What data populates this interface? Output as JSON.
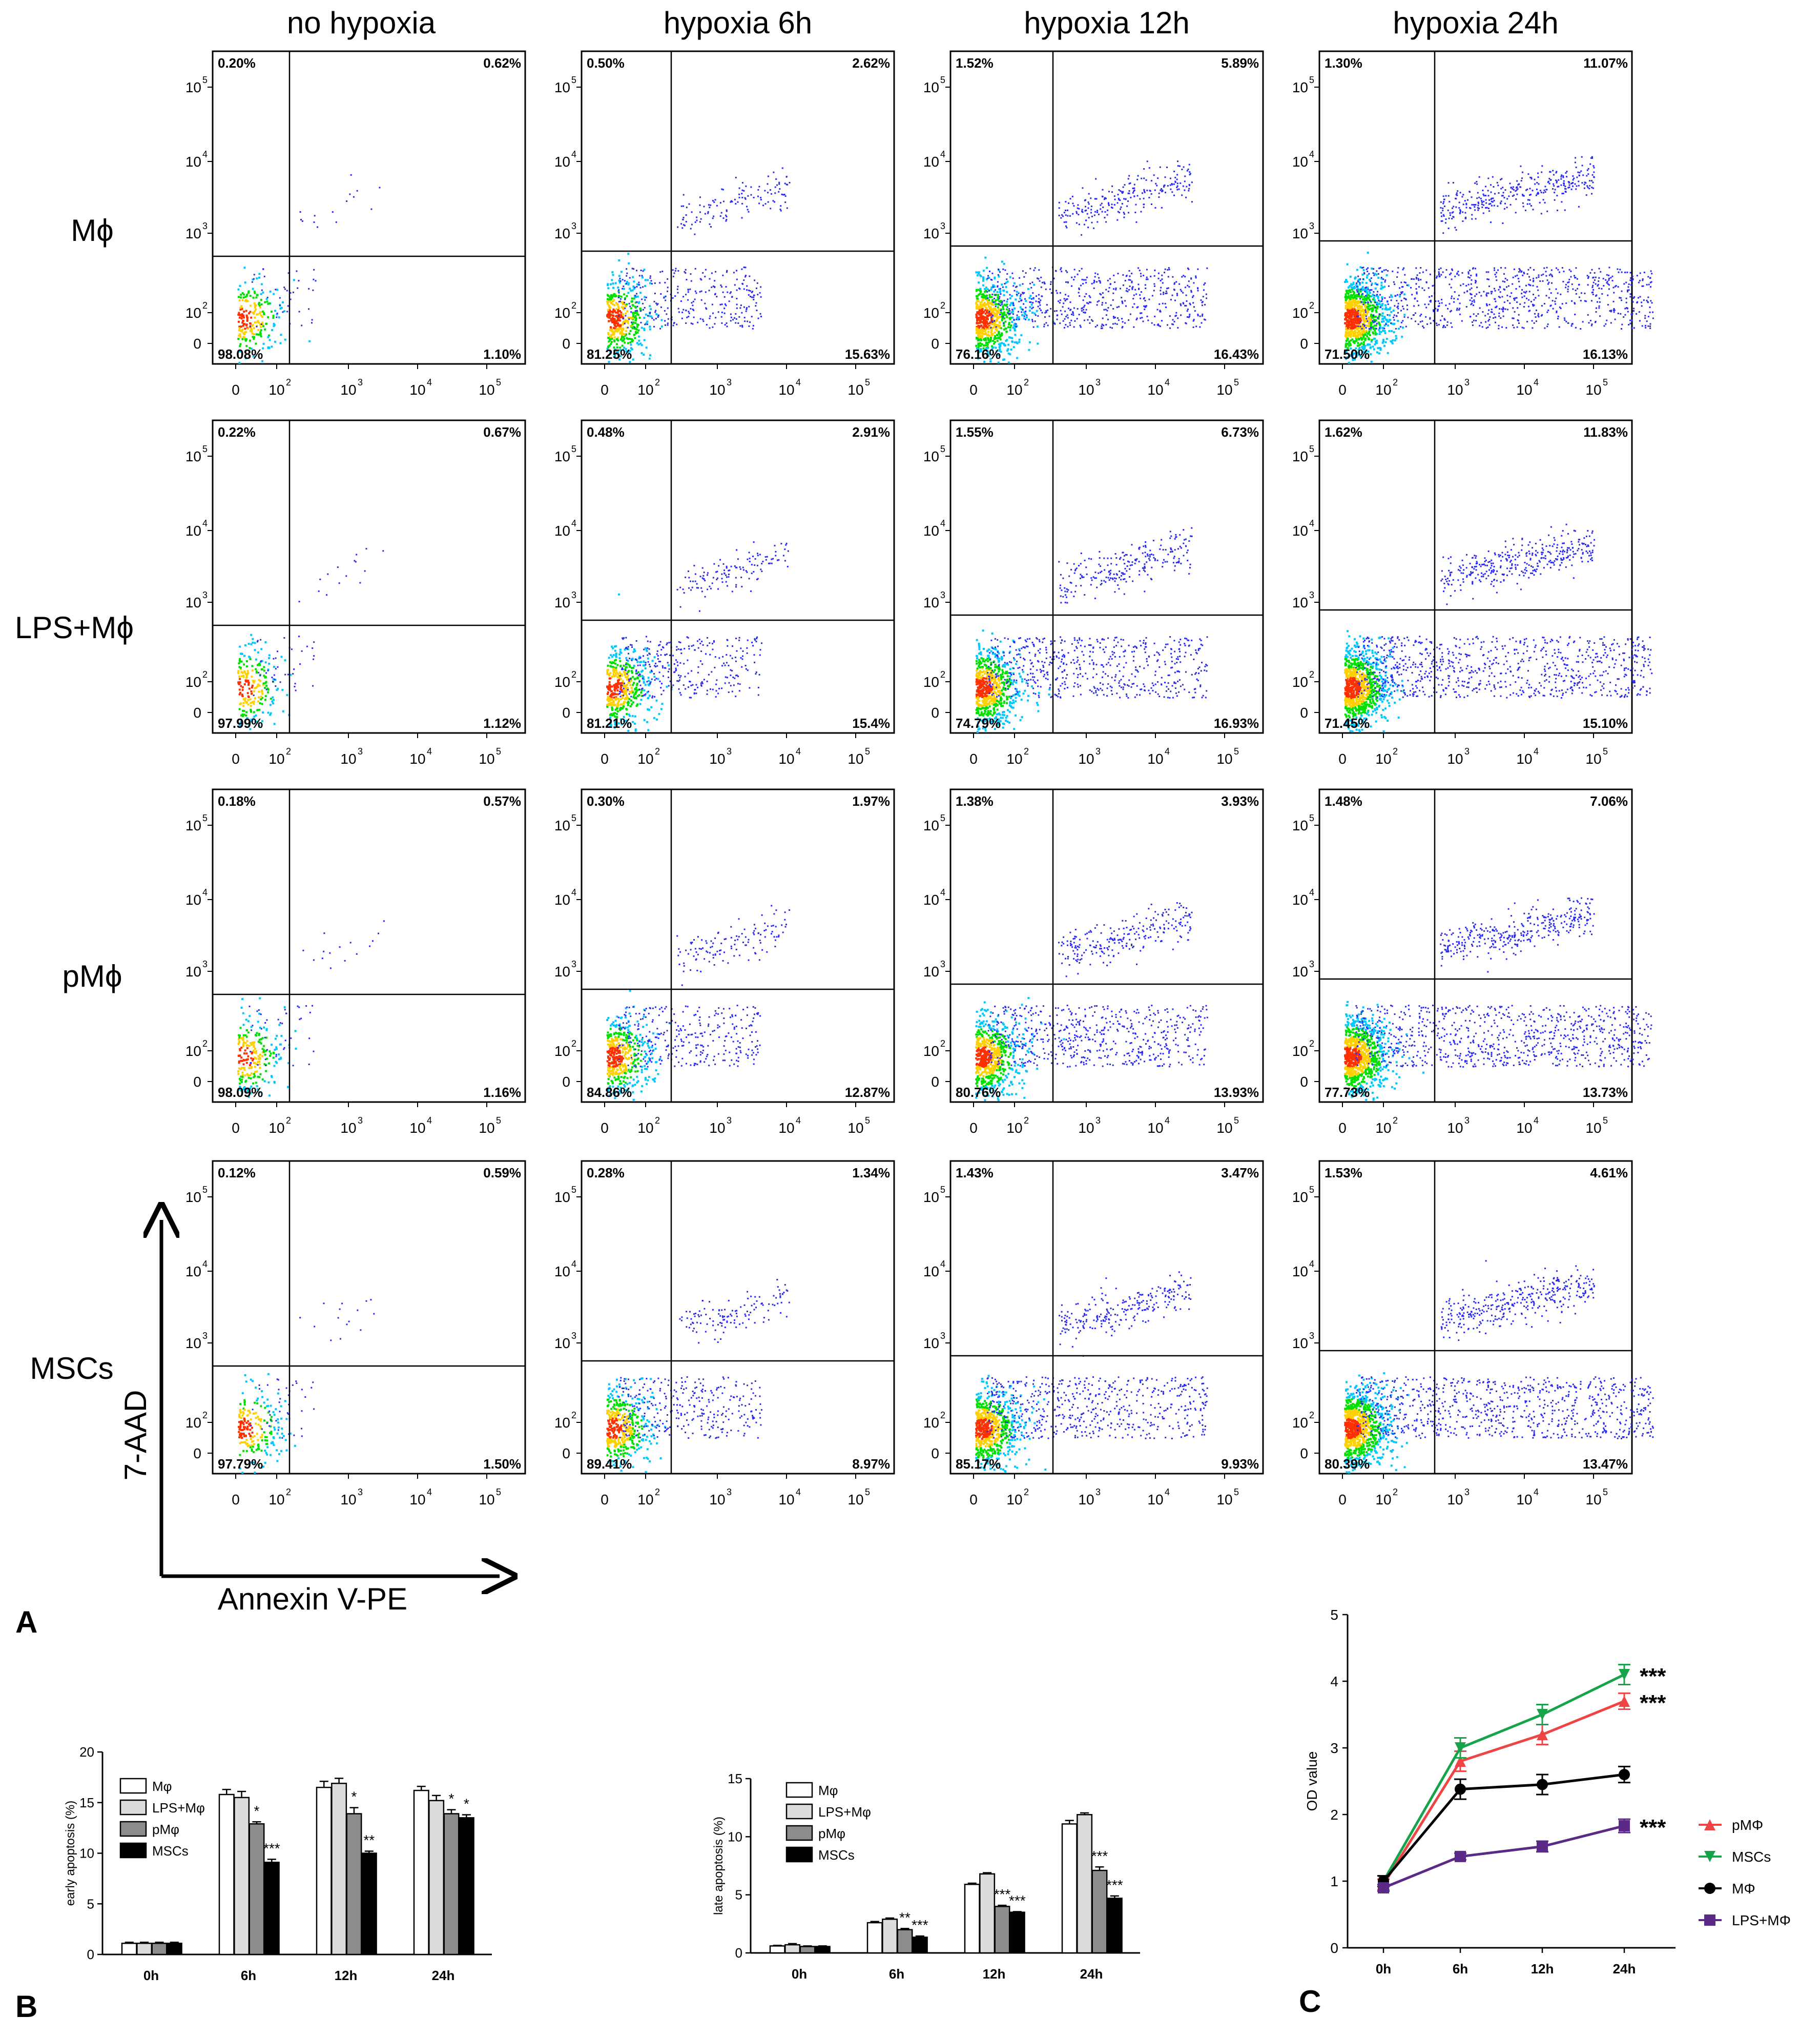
{
  "panel_labels": {
    "a": "A",
    "b": "B",
    "c": "C"
  },
  "column_headers": [
    "no hypoxia",
    "hypoxia 6h",
    "hypoxia 12h",
    "hypoxia 24h"
  ],
  "row_labels": [
    "Mϕ",
    "LPS+Mϕ",
    "pMϕ",
    "MSCs"
  ],
  "axis_titles": {
    "y": "7-AAD",
    "x": "Annexin V-PE"
  },
  "flow_ticks": {
    "y": [
      "10",
      "10",
      "10",
      "10",
      "0"
    ],
    "y_exp": [
      "5",
      "4",
      "3",
      "2",
      ""
    ],
    "x": [
      "0",
      "10",
      "10",
      "10",
      "10"
    ],
    "x_exp": [
      "",
      "2",
      "3",
      "4",
      "5"
    ]
  },
  "colors": {
    "dot_sparse": "#2a2af0",
    "dot_dense": [
      "#00c8ff",
      "#00e000",
      "#ffd000",
      "#ff3000"
    ],
    "green": "#16a34a",
    "red": "#ef4444",
    "purple": "#5b2a86"
  },
  "quadrants": [
    [
      {
        "ul": "0.20%",
        "ur": "0.62%",
        "ll": "98.08%",
        "lr": "1.10%"
      },
      {
        "ul": "0.50%",
        "ur": "2.62%",
        "ll": "81.25%",
        "lr": "15.63%"
      },
      {
        "ul": "1.52%",
        "ur": "5.89%",
        "ll": "76.16%",
        "lr": "16.43%"
      },
      {
        "ul": "1.30%",
        "ur": "11.07%",
        "ll": "71.50%",
        "lr": "16.13%"
      }
    ],
    [
      {
        "ul": "0.22%",
        "ur": "0.67%",
        "ll": "97.99%",
        "lr": "1.12%"
      },
      {
        "ul": "0.48%",
        "ur": "2.91%",
        "ll": "81.21%",
        "lr": "15.4%"
      },
      {
        "ul": "1.55%",
        "ur": "6.73%",
        "ll": "74.79%",
        "lr": "16.93%"
      },
      {
        "ul": "1.62%",
        "ur": "11.83%",
        "ll": "71.45%",
        "lr": "15.10%"
      }
    ],
    [
      {
        "ul": "0.18%",
        "ur": "0.57%",
        "ll": "98.09%",
        "lr": "1.16%"
      },
      {
        "ul": "0.30%",
        "ur": "1.97%",
        "ll": "84.86%",
        "lr": "12.87%"
      },
      {
        "ul": "1.38%",
        "ur": "3.93%",
        "ll": "80.76%",
        "lr": "13.93%"
      },
      {
        "ul": "1.48%",
        "ur": "7.06%",
        "ll": "77.73%",
        "lr": "13.73%"
      }
    ],
    [
      {
        "ul": "0.12%",
        "ur": "0.59%",
        "ll": "97.79%",
        "lr": "1.50%"
      },
      {
        "ul": "0.28%",
        "ur": "1.34%",
        "ll": "89.41%",
        "lr": "8.97%"
      },
      {
        "ul": "1.43%",
        "ur": "3.47%",
        "ll": "85.17%",
        "lr": "9.93%"
      },
      {
        "ul": "1.53%",
        "ur": "4.61%",
        "ll": "80.39%",
        "lr": "13.47%"
      }
    ]
  ],
  "chart_data": [
    {
      "type": "bar",
      "ylabel": "early apoptosis (%)",
      "categories": [
        "0h",
        "6h",
        "12h",
        "24h"
      ],
      "ylim": [
        0,
        20
      ],
      "yticks": [
        "0",
        "5",
        "10",
        "15",
        "20"
      ],
      "series": [
        {
          "name": "Mφ",
          "values": [
            1.1,
            15.8,
            16.5,
            16.2
          ],
          "err": [
            0.1,
            0.5,
            0.6,
            0.4
          ],
          "fill": "#ffffff"
        },
        {
          "name": "LPS+Mφ",
          "values": [
            1.1,
            15.5,
            16.9,
            15.2
          ],
          "err": [
            0.1,
            0.6,
            0.5,
            0.5
          ],
          "fill": "#dcdcdc"
        },
        {
          "name": "pMφ",
          "values": [
            1.1,
            12.9,
            13.9,
            13.9
          ],
          "err": [
            0.1,
            0.2,
            0.6,
            0.4
          ],
          "fill": "#8c8c8c"
        },
        {
          "name": "MSCs",
          "values": [
            1.1,
            9.1,
            10.0,
            13.5
          ],
          "err": [
            0.1,
            0.3,
            0.2,
            0.3
          ],
          "fill": "#000000"
        }
      ],
      "annotations": [
        {
          "series": 2,
          "category": 1,
          "text": "*"
        },
        {
          "series": 3,
          "category": 1,
          "text": "***"
        },
        {
          "series": 2,
          "category": 2,
          "text": "*"
        },
        {
          "series": 3,
          "category": 2,
          "text": "**"
        },
        {
          "series": 2,
          "category": 3,
          "text": "*"
        },
        {
          "series": 3,
          "category": 3,
          "text": "*"
        }
      ]
    },
    {
      "type": "bar",
      "ylabel": "late apoptosis (%)",
      "categories": [
        "0h",
        "6h",
        "12h",
        "24h"
      ],
      "ylim": [
        0,
        15
      ],
      "yticks": [
        "0",
        "5",
        "10",
        "15"
      ],
      "series": [
        {
          "name": "Mφ",
          "values": [
            0.6,
            2.6,
            5.9,
            11.1
          ],
          "err": [
            0.05,
            0.1,
            0.1,
            0.3
          ],
          "fill": "#ffffff"
        },
        {
          "name": "LPS+Mφ",
          "values": [
            0.7,
            2.9,
            6.8,
            11.9
          ],
          "err": [
            0.1,
            0.1,
            0.1,
            0.15
          ],
          "fill": "#dcdcdc"
        },
        {
          "name": "pMφ",
          "values": [
            0.55,
            2.0,
            4.0,
            7.1
          ],
          "err": [
            0.05,
            0.1,
            0.1,
            0.3
          ],
          "fill": "#8c8c8c"
        },
        {
          "name": "MSCs",
          "values": [
            0.55,
            1.35,
            3.5,
            4.7
          ],
          "err": [
            0.05,
            0.1,
            0.05,
            0.2
          ],
          "fill": "#000000"
        }
      ],
      "annotations": [
        {
          "series": 2,
          "category": 1,
          "text": "**"
        },
        {
          "series": 3,
          "category": 1,
          "text": "***"
        },
        {
          "series": 2,
          "category": 2,
          "text": "***"
        },
        {
          "series": 3,
          "category": 2,
          "text": "***"
        },
        {
          "series": 2,
          "category": 3,
          "text": "***"
        },
        {
          "series": 3,
          "category": 3,
          "text": "***"
        }
      ]
    },
    {
      "type": "line",
      "ylabel": "OD value",
      "x": [
        "0h",
        "6h",
        "12h",
        "24h"
      ],
      "ylim": [
        0,
        5
      ],
      "yticks": [
        "0",
        "1",
        "2",
        "3",
        "4",
        "5"
      ],
      "series": [
        {
          "name": "pMΦ",
          "values": [
            0.95,
            2.8,
            3.2,
            3.7
          ],
          "err": [
            0.08,
            0.15,
            0.15,
            0.12
          ],
          "color": "#ef4444",
          "marker": "triangle-up"
        },
        {
          "name": "MSCs",
          "values": [
            1.0,
            3.0,
            3.5,
            4.1
          ],
          "err": [
            0.08,
            0.15,
            0.15,
            0.15
          ],
          "color": "#16a34a",
          "marker": "triangle-down"
        },
        {
          "name": "MΦ",
          "values": [
            1.0,
            2.38,
            2.45,
            2.6
          ],
          "err": [
            0.08,
            0.15,
            0.15,
            0.12
          ],
          "color": "#000000",
          "marker": "circle"
        },
        {
          "name": "LPS+MΦ",
          "values": [
            0.9,
            1.37,
            1.52,
            1.83
          ],
          "err": [
            0.05,
            0.05,
            0.08,
            0.1
          ],
          "color": "#5b2a86",
          "marker": "square"
        }
      ],
      "annotations": [
        {
          "series": 1,
          "text": "***"
        },
        {
          "series": 0,
          "text": "***"
        },
        {
          "series": 3,
          "text": "***"
        }
      ]
    }
  ]
}
